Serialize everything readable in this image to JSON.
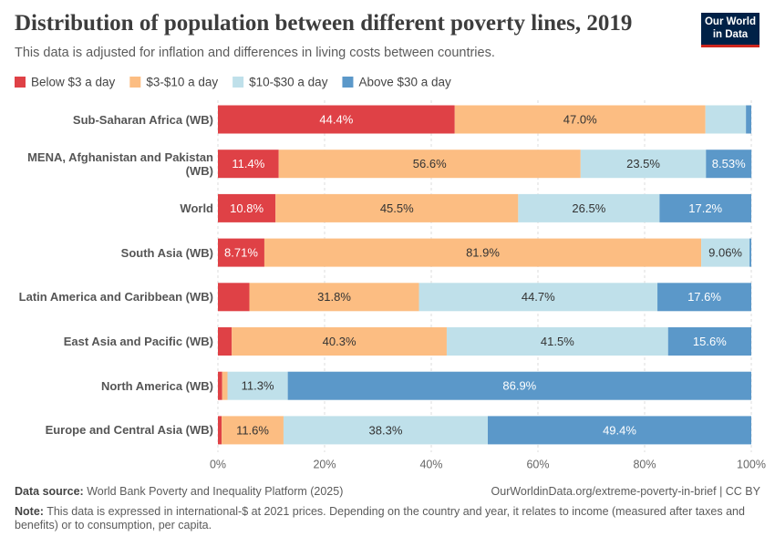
{
  "chart_data": {
    "type": "stacked_bar_horizontal",
    "title": "Distribution of population between different poverty lines, 2019",
    "subtitle": "This data is adjusted for inflation and differences in living costs between countries.",
    "logo": [
      "Our World",
      "in Data"
    ],
    "categories": [
      "Sub-Saharan Africa (WB)",
      "MENA, Afghanistan and Pakistan (WB)",
      "World",
      "South Asia (WB)",
      "Latin America and Caribbean (WB)",
      "East Asia and Pacific (WB)",
      "North America (WB)",
      "Europe and Central Asia (WB)"
    ],
    "series": [
      {
        "name": "Below $3 a day",
        "color": "#df4146",
        "values": [
          44.4,
          11.4,
          10.8,
          8.71,
          5.9,
          2.6,
          0.8,
          0.7
        ],
        "value_labels": [
          "44.4%",
          "11.4%",
          "10.8%",
          "8.71%",
          null,
          null,
          null,
          null
        ]
      },
      {
        "name": "$3-$10 a day",
        "color": "#fcbd82",
        "values": [
          47.0,
          56.6,
          45.5,
          81.9,
          31.8,
          40.3,
          1.0,
          11.6
        ],
        "value_labels": [
          "47.0%",
          "56.6%",
          "45.5%",
          "81.9%",
          "31.8%",
          "40.3%",
          null,
          "11.6%"
        ]
      },
      {
        "name": "$10-$30 a day",
        "color": "#bfe0ea",
        "values": [
          7.6,
          23.5,
          26.5,
          9.06,
          44.7,
          41.5,
          11.3,
          38.3
        ],
        "value_labels": [
          null,
          "23.5%",
          "26.5%",
          "9.06%",
          "44.7%",
          "41.5%",
          "11.3%",
          "38.3%"
        ]
      },
      {
        "name": "Above $30 a day",
        "color": "#5b98c9",
        "values": [
          1.0,
          8.53,
          17.2,
          0.33,
          17.6,
          15.6,
          86.9,
          49.4
        ],
        "value_labels": [
          null,
          "8.53%",
          "17.2%",
          null,
          "17.6%",
          "15.6%",
          "86.9%",
          "49.4%"
        ]
      }
    ],
    "xlim": [
      0,
      100
    ],
    "xticks": [
      {
        "value": 0,
        "label": "0%"
      },
      {
        "value": 20,
        "label": "20%"
      },
      {
        "value": 40,
        "label": "40%"
      },
      {
        "value": 60,
        "label": "60%"
      },
      {
        "value": 80,
        "label": "80%"
      },
      {
        "value": 100,
        "label": "100%"
      }
    ],
    "grid": true,
    "legend": "top-left",
    "source_label": "Data source:",
    "source": "World Bank Poverty and Inequality Platform (2025)",
    "url": "OurWorldinData.org/extreme-poverty-in-brief | CC BY",
    "note_label": "Note:",
    "note": "This data is expressed in international-$ at 2021 prices. Depending on the country and year, it relates to income (measured after taxes and benefits) or to consumption, per capita."
  }
}
